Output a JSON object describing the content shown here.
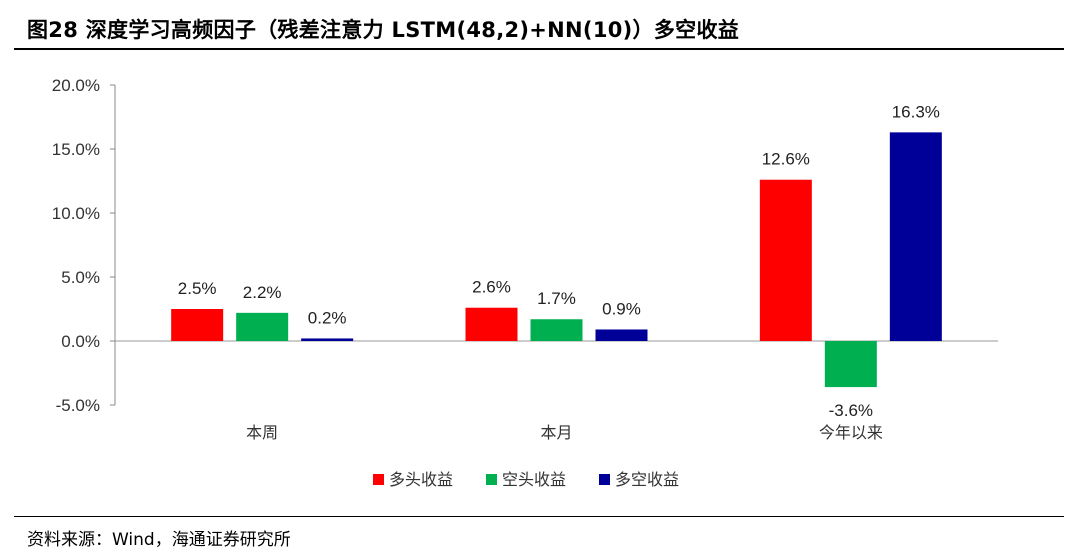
{
  "title": "图28 深度学习高频因子（残差注意力 LSTM(48,2)+NN(10)）多空收益",
  "source": "资料来源：Wind，海通证券研究所",
  "chart_data": {
    "type": "bar",
    "categories": [
      "本周",
      "本月",
      "今年以来"
    ],
    "series": [
      {
        "name": "多头收益",
        "color": "#ff0000",
        "values": [
          2.5,
          2.6,
          12.6
        ],
        "labels": [
          "2.5%",
          "2.6%",
          "12.6%"
        ]
      },
      {
        "name": "空头收益",
        "color": "#00b050",
        "values": [
          2.2,
          1.7,
          -3.6
        ],
        "labels": [
          "2.2%",
          "1.7%",
          "-3.6%"
        ]
      },
      {
        "name": "多空收益",
        "color": "#000099",
        "values": [
          0.2,
          0.9,
          16.3
        ],
        "labels": [
          "0.2%",
          "0.9%",
          "16.3%"
        ]
      }
    ],
    "ylim": [
      -5,
      20
    ],
    "yticks": [
      -5,
      0,
      5,
      10,
      15,
      20
    ],
    "ytick_labels": [
      "-5.0%",
      "0.0%",
      "5.0%",
      "10.0%",
      "15.0%",
      "20.0%"
    ],
    "grid": false,
    "legend": "bottom"
  }
}
